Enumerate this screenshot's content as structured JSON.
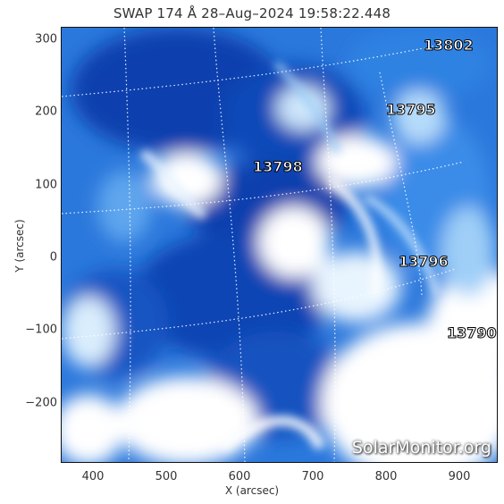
{
  "title": "SWAP 174 Å 28–Aug–2024 19:58:22.448",
  "x_axis": {
    "label": "X (arcsec)",
    "ticks": [
      "400",
      "500",
      "600",
      "700",
      "800",
      "900"
    ]
  },
  "y_axis": {
    "label": "Y (arcsec)",
    "ticks": [
      "300",
      "200",
      "100",
      "0",
      "−100",
      "−200"
    ]
  },
  "active_regions": [
    {
      "id": "13802",
      "x": 875,
      "y": 290
    },
    {
      "id": "13795",
      "x": 835,
      "y": 197
    },
    {
      "id": "13798",
      "x": 660,
      "y": 118
    },
    {
      "id": "13796",
      "x": 852,
      "y": -8
    },
    {
      "id": "13790",
      "x": 932,
      "y": -107
    }
  ],
  "watermark": "SolarMonitor.org",
  "colors": {
    "plasma_dark": "#0a3aa8",
    "plasma_mid": "#2f7fe0",
    "plasma_light": "#8cc4f4",
    "background": "#ffffff"
  }
}
